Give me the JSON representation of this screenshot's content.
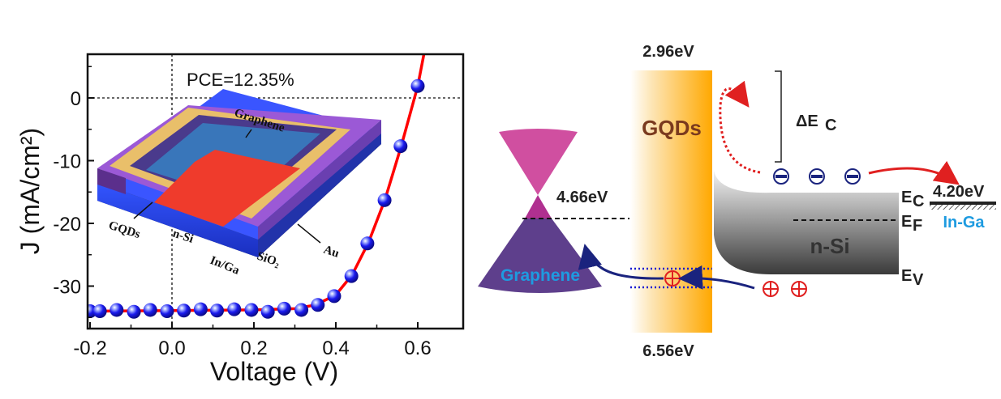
{
  "chart_data": {
    "type": "line",
    "title": "",
    "xlabel": "Voltage (V)",
    "ylabel": "J (mA/cm²)",
    "xlim": [
      -0.2,
      0.7
    ],
    "ylim": [
      -36,
      5
    ],
    "xticks": [
      -0.2,
      0.0,
      0.2,
      0.4,
      0.6
    ],
    "xtick_labels": [
      "-0.2",
      "0.0",
      "0.2",
      "0.4",
      "0.6"
    ],
    "yticks": [
      0,
      -10,
      -20,
      -30
    ],
    "ytick_labels": [
      "0",
      "-10",
      "-20",
      "-30"
    ],
    "grid": false,
    "reference_lines": {
      "x": 0,
      "y": 0,
      "style": "dotted"
    },
    "annotation": "PCE=12.35%",
    "series": [
      {
        "name": "measured",
        "marker": "blue-sphere",
        "x": [
          -0.2,
          -0.176,
          -0.135,
          -0.093,
          -0.053,
          -0.012,
          0.029,
          0.07,
          0.11,
          0.152,
          0.194,
          0.234,
          0.274,
          0.316,
          0.356,
          0.396,
          0.438,
          0.477,
          0.519,
          0.558,
          0.6
        ],
        "y": [
          -34.0,
          -34.0,
          -33.8,
          -34.1,
          -33.8,
          -34.0,
          -33.9,
          -33.7,
          -33.9,
          -33.7,
          -33.8,
          -34.1,
          -33.6,
          -33.8,
          -33.0,
          -31.6,
          -28.4,
          -23.2,
          -16.3,
          -7.7,
          1.9
        ]
      },
      {
        "name": "fit",
        "style": "red-line",
        "x": [
          -0.2,
          0.0,
          0.2,
          0.3,
          0.35,
          0.4,
          0.44,
          0.48,
          0.52,
          0.56,
          0.6,
          0.615
        ],
        "y": [
          -34.0,
          -33.9,
          -33.8,
          -33.6,
          -33.0,
          -31.4,
          -28.2,
          -23.0,
          -16.2,
          -7.6,
          1.9,
          7.0
        ]
      }
    ],
    "inset": {
      "description": "device schematic",
      "labels": [
        "Graphene",
        "GQDs",
        "n-Si",
        "Au",
        "SiO₂",
        "In/Ga"
      ]
    }
  },
  "diagram": {
    "gqds": {
      "label": "GQDs",
      "top_energy": "2.96eV",
      "bottom_energy": "6.56eV"
    },
    "graphene": {
      "label": "Graphene",
      "dirac_energy": "4.66eV"
    },
    "nsi": {
      "label": "n-Si",
      "ec": "E",
      "ec_sub": "C",
      "ef": "E",
      "ef_sub": "F",
      "ev": "E",
      "ev_sub": "V"
    },
    "contact": {
      "label": "In-Ga",
      "energy": "4.20eV"
    },
    "delta_ec": {
      "symbol": "ΔE",
      "sub": "C"
    },
    "charges": {
      "electron": "⊖",
      "hole": "⊕"
    },
    "colors": {
      "graphene_top": "#d04fa0",
      "graphene_bottom": "#5e3f8c",
      "graphene_text": "#1e9be0",
      "gqds_orange": "#ffa800",
      "gqds_text": "#7a3a1e",
      "electron": "#1a237e",
      "hole": "#e02020",
      "arrow_red": "#e02020",
      "arrow_blue": "#1a237e",
      "in_ga_text": "#1e9be0",
      "curve": "#ff0000",
      "marker": "#1a1aee"
    }
  }
}
